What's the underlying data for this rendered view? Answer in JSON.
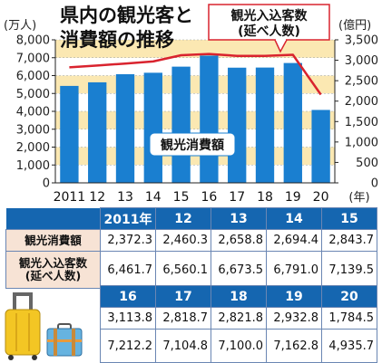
{
  "chart_data": {
    "type": "bar",
    "title_line1": "県内の観光客と",
    "title_line2": "消費額の推移",
    "left_unit": "(万人)",
    "right_unit": "(億円)",
    "x_unit": "(年)",
    "categories": [
      "2011",
      "12",
      "13",
      "14",
      "15",
      "16",
      "17",
      "18",
      "19",
      "20"
    ],
    "years": [
      "2011",
      "2012",
      "2013",
      "2014",
      "2015",
      "2016",
      "2017",
      "2018",
      "2019",
      "2020"
    ],
    "left_axis": {
      "min": 0,
      "max": 8000,
      "ticks": [
        "0",
        "1,000",
        "2,000",
        "3,000",
        "4,000",
        "5,000",
        "6,000",
        "7,000",
        "8,000"
      ]
    },
    "right_axis": {
      "min": 0,
      "max": 3500,
      "ticks": [
        "0",
        "500",
        "1,000",
        "1,500",
        "2,000",
        "2,500",
        "3,000",
        "3,500"
      ]
    },
    "series": [
      {
        "name": "観光消費額",
        "type": "bar",
        "axis": "right",
        "color": "#1a7fd0",
        "values": [
          2372.3,
          2460.3,
          2658.8,
          2694.4,
          2843.7,
          3113.8,
          2818.7,
          2821.8,
          2932.8,
          1784.5
        ]
      },
      {
        "name": "観光入込客数(延べ人数)",
        "type": "line",
        "axis": "left",
        "color": "#d9232e",
        "values": [
          6461.7,
          6560.1,
          6673.5,
          6791.0,
          7139.5,
          7212.2,
          7104.8,
          7100.0,
          7162.8,
          4935.7
        ]
      }
    ],
    "bar_label": "観光消費額",
    "line_label_1": "観光入込客数",
    "line_label_2": "(延べ人数)",
    "band_color": "#fbe8b2",
    "grid": true
  },
  "table": {
    "row1_label": "観光消費額",
    "row2_label_1": "観光入込客数",
    "row2_label_2": "(延べ人数)",
    "block1_headers": [
      "2011年",
      "12",
      "13",
      "14",
      "15"
    ],
    "block1_row1": [
      "2,372.3",
      "2,460.3",
      "2,658.8",
      "2,694.4",
      "2,843.7"
    ],
    "block1_row2": [
      "6,461.7",
      "6,560.1",
      "6,673.5",
      "6,791.0",
      "7,139.5"
    ],
    "block2_headers": [
      "16",
      "17",
      "18",
      "19",
      "20"
    ],
    "block2_row1": [
      "3,113.8",
      "2,818.7",
      "2,821.8",
      "2,932.8",
      "1,784.5"
    ],
    "block2_row2": [
      "7,212.2",
      "7,104.8",
      "7,100.0",
      "7,162.8",
      "4,935.7"
    ]
  },
  "colors": {
    "header_blue": "#1566b0",
    "label_bg": "#f7e3d5",
    "bar_blue": "#1a7fd0",
    "line_red": "#d9232e"
  },
  "decor": {
    "icon_1": "yellow-suitcase-icon",
    "icon_2": "blue-trunk-icon"
  }
}
